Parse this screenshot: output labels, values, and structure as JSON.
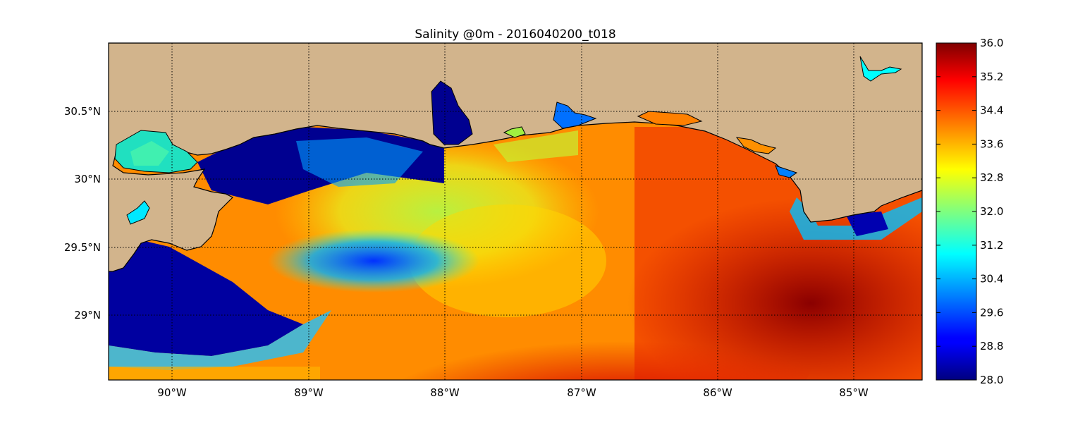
{
  "title": "Salinity @0m - 2016040200_t018",
  "map": {
    "lon_range": [
      -90.5,
      -84.5
    ],
    "lat_range": [
      28.55,
      31.0
    ],
    "meridians": [
      -90,
      -89,
      -88,
      -87,
      -86,
      -85
    ],
    "parallels": [
      29.0,
      29.5,
      30.0,
      30.5
    ],
    "lon_labels": [
      "90°W",
      "89°W",
      "88°W",
      "87°W",
      "86°W",
      "85°W"
    ],
    "lat_labels": [
      "29°N",
      "29.5°N",
      "30°N",
      "30.5°N"
    ],
    "grid": "dotted",
    "land_color": "#d2b48c"
  },
  "colorbar": {
    "min": 28.0,
    "max": 36.0,
    "colormap": "jet",
    "ticks": [
      "28.0",
      "28.8",
      "29.6",
      "30.4",
      "31.2",
      "32.0",
      "32.8",
      "33.6",
      "34.4",
      "35.2",
      "36.0"
    ]
  }
}
